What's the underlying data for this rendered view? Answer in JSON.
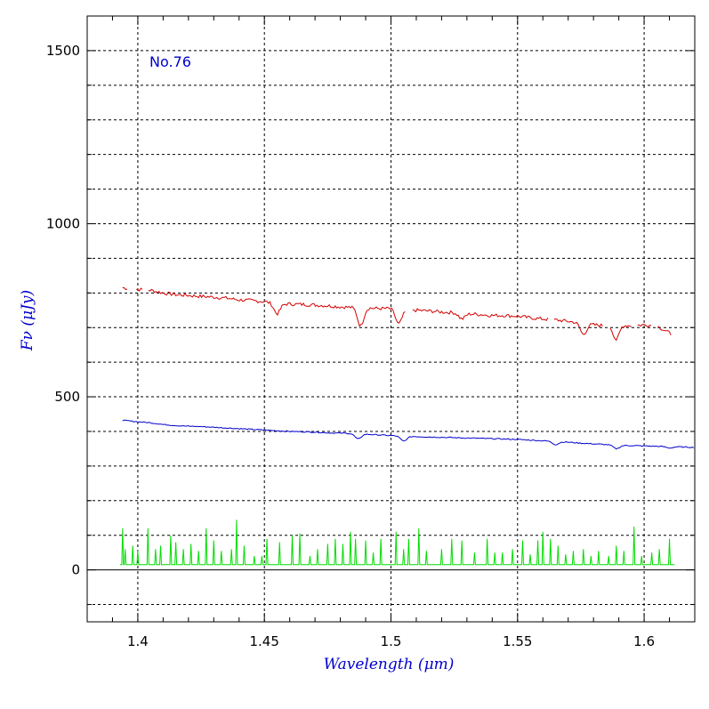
{
  "chart_data": {
    "type": "line",
    "title": "",
    "annotation": "No.76",
    "xlabel": "Wavelength (μm)",
    "ylabel": "Fν (μJy)",
    "xlim": [
      1.38,
      1.62
    ],
    "ylim": [
      -150,
      1600
    ],
    "x_ticks": [
      1.4,
      1.45,
      1.5,
      1.55,
      1.6
    ],
    "x_tick_labels": [
      "1.4",
      "1.45",
      "1.5",
      "1.55",
      "1.6"
    ],
    "y_ticks": [
      0,
      500,
      1000,
      1500
    ],
    "y_tick_labels": [
      "0",
      "500",
      "1000",
      "1500"
    ],
    "y_minor_gridlines": [
      -100,
      100,
      200,
      300,
      400,
      600,
      700,
      800,
      900,
      1100,
      1200,
      1300,
      1400
    ],
    "grid": true,
    "legend": false,
    "colors": {
      "red": "#d40000",
      "blue": "#0000cc",
      "green": "#00dd00",
      "axis": "#000000"
    },
    "series": [
      {
        "color": "#d40000",
        "style": "noisy-with-gaps",
        "x": [
          1.394,
          1.4,
          1.405,
          1.41,
          1.415,
          1.42,
          1.425,
          1.43,
          1.435,
          1.44,
          1.445,
          1.45,
          1.455,
          1.46,
          1.465,
          1.47,
          1.475,
          1.48,
          1.485,
          1.49,
          1.495,
          1.5,
          1.505,
          1.51,
          1.515,
          1.52,
          1.525,
          1.53,
          1.535,
          1.54,
          1.545,
          1.55,
          1.555,
          1.56,
          1.565,
          1.57,
          1.575,
          1.58,
          1.585,
          1.59,
          1.595,
          1.6,
          1.605,
          1.611
        ],
        "y": [
          815,
          810,
          808,
          800,
          795,
          793,
          790,
          788,
          785,
          780,
          778,
          775,
          768,
          768,
          767,
          765,
          763,
          760,
          758,
          757,
          755,
          755,
          748,
          750,
          748,
          745,
          743,
          740,
          738,
          735,
          735,
          733,
          728,
          725,
          722,
          718,
          713,
          708,
          705,
          708,
          705,
          708,
          705,
          680
        ],
        "dips": [
          [
            1.488,
            705
          ],
          [
            1.503,
            710
          ],
          [
            1.455,
            740
          ],
          [
            1.576,
            680
          ],
          [
            1.589,
            665
          ],
          [
            1.528,
            725
          ]
        ],
        "gaps": [
          [
            1.396,
            1.399
          ],
          [
            1.402,
            1.404
          ],
          [
            1.506,
            1.508
          ],
          [
            1.562,
            1.564
          ],
          [
            1.584,
            1.586
          ],
          [
            1.595,
            1.597
          ],
          [
            1.603,
            1.605
          ]
        ]
      },
      {
        "color": "#0000cc",
        "style": "smooth",
        "x": [
          1.394,
          1.4,
          1.405,
          1.41,
          1.415,
          1.42,
          1.425,
          1.43,
          1.435,
          1.44,
          1.445,
          1.45,
          1.455,
          1.46,
          1.465,
          1.47,
          1.475,
          1.48,
          1.485,
          1.49,
          1.495,
          1.5,
          1.505,
          1.51,
          1.515,
          1.52,
          1.525,
          1.53,
          1.535,
          1.54,
          1.545,
          1.55,
          1.555,
          1.56,
          1.565,
          1.57,
          1.575,
          1.58,
          1.585,
          1.59,
          1.595,
          1.6,
          1.605,
          1.61,
          1.615,
          1.62
        ],
        "y": [
          432,
          428,
          425,
          420,
          417,
          415,
          414,
          412,
          410,
          408,
          406,
          404,
          402,
          400,
          399,
          398,
          396,
          395,
          394,
          392,
          390,
          388,
          386,
          385,
          384,
          383,
          382,
          381,
          380,
          379,
          378,
          377,
          375,
          373,
          371,
          369,
          366,
          364,
          362,
          360,
          359,
          358,
          357,
          356,
          355,
          354
        ],
        "dips": [
          [
            1.487,
            378
          ],
          [
            1.505,
            372
          ],
          [
            1.565,
            362
          ],
          [
            1.589,
            350
          ],
          [
            1.61,
            352
          ]
        ]
      },
      {
        "color": "#00dd00",
        "style": "emission-lines",
        "baseline": 15,
        "x_range": [
          1.393,
          1.612
        ],
        "peaks": [
          [
            1.394,
            120
          ],
          [
            1.395,
            60
          ],
          [
            1.398,
            70
          ],
          [
            1.4,
            55
          ],
          [
            1.404,
            120
          ],
          [
            1.407,
            60
          ],
          [
            1.409,
            70
          ],
          [
            1.413,
            100
          ],
          [
            1.415,
            80
          ],
          [
            1.418,
            60
          ],
          [
            1.421,
            75
          ],
          [
            1.424,
            55
          ],
          [
            1.427,
            120
          ],
          [
            1.43,
            85
          ],
          [
            1.433,
            55
          ],
          [
            1.437,
            60
          ],
          [
            1.439,
            145
          ],
          [
            1.442,
            70
          ],
          [
            1.446,
            40
          ],
          [
            1.449,
            40
          ],
          [
            1.451,
            90
          ],
          [
            1.456,
            80
          ],
          [
            1.461,
            100
          ],
          [
            1.464,
            105
          ],
          [
            1.468,
            40
          ],
          [
            1.471,
            60
          ],
          [
            1.475,
            75
          ],
          [
            1.478,
            90
          ],
          [
            1.481,
            75
          ],
          [
            1.484,
            110
          ],
          [
            1.486,
            90
          ],
          [
            1.49,
            85
          ],
          [
            1.493,
            50
          ],
          [
            1.496,
            90
          ],
          [
            1.502,
            110
          ],
          [
            1.505,
            60
          ],
          [
            1.507,
            90
          ],
          [
            1.511,
            120
          ],
          [
            1.514,
            55
          ],
          [
            1.52,
            60
          ],
          [
            1.524,
            90
          ],
          [
            1.528,
            85
          ],
          [
            1.533,
            50
          ],
          [
            1.538,
            90
          ],
          [
            1.541,
            50
          ],
          [
            1.544,
            50
          ],
          [
            1.548,
            60
          ],
          [
            1.552,
            85
          ],
          [
            1.555,
            45
          ],
          [
            1.558,
            85
          ],
          [
            1.56,
            110
          ],
          [
            1.563,
            90
          ],
          [
            1.566,
            70
          ],
          [
            1.569,
            45
          ],
          [
            1.572,
            55
          ],
          [
            1.576,
            60
          ],
          [
            1.579,
            40
          ],
          [
            1.582,
            55
          ],
          [
            1.586,
            40
          ],
          [
            1.589,
            70
          ],
          [
            1.592,
            55
          ],
          [
            1.596,
            125
          ],
          [
            1.599,
            40
          ],
          [
            1.603,
            50
          ],
          [
            1.606,
            60
          ],
          [
            1.61,
            90
          ]
        ]
      }
    ]
  }
}
